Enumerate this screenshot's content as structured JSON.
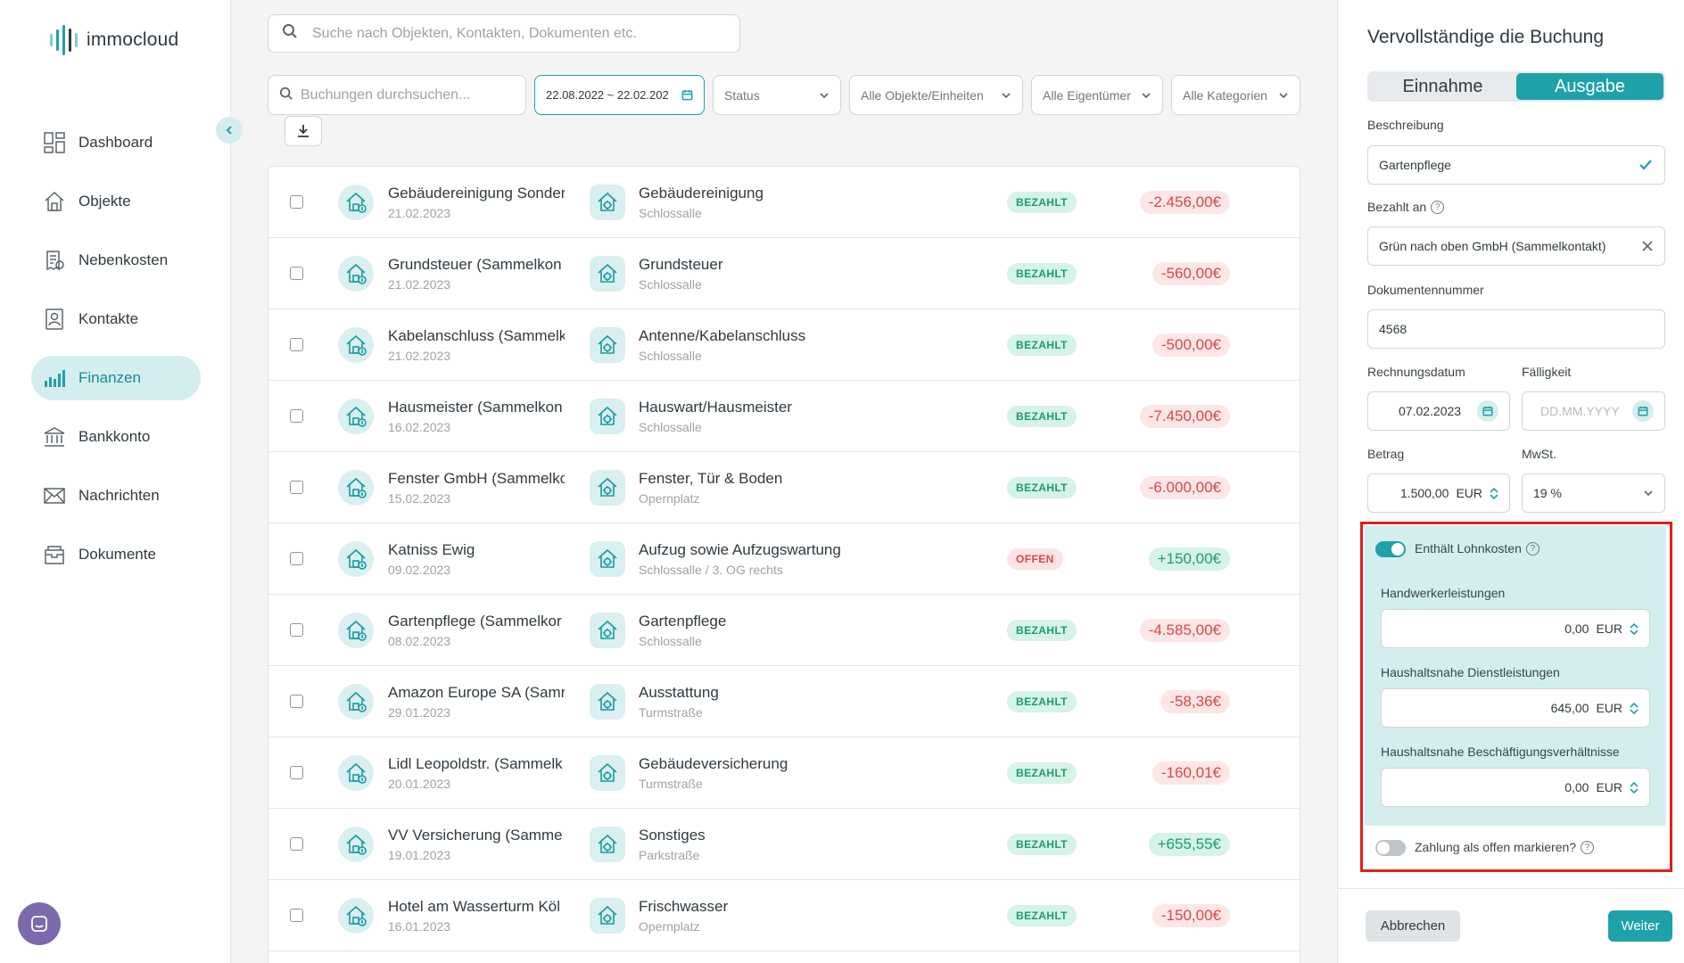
{
  "app": {
    "name": "immocloud"
  },
  "colors": {
    "accent": "#1fa1a9",
    "accent_light": "#d4eef0",
    "paid_bg": "#d5f3e6",
    "paid_text": "#1b9e6b",
    "negative_text": "#d94747",
    "negative_bg": "#fde6e6",
    "highlight": "#e0201c",
    "chat": "#7d6aad"
  },
  "sidebar": {
    "items": [
      {
        "label": "Dashboard",
        "icon": "dashboard-icon"
      },
      {
        "label": "Objekte",
        "icon": "house-icon"
      },
      {
        "label": "Nebenkosten",
        "icon": "receipt-icon"
      },
      {
        "label": "Kontakte",
        "icon": "contact-icon"
      },
      {
        "label": "Finanzen",
        "icon": "chart-icon",
        "active": true
      },
      {
        "label": "Bankkonto",
        "icon": "bank-icon"
      },
      {
        "label": "Nachrichten",
        "icon": "mail-icon"
      },
      {
        "label": "Dokumente",
        "icon": "folder-icon"
      }
    ]
  },
  "search": {
    "placeholder": "Suche nach Objekten, Kontakten, Dokumenten etc."
  },
  "filters": {
    "search_placeholder": "Buchungen durchsuchen...",
    "date_range": "22.08.2022 ~ 22.02.202",
    "status": "Status",
    "objects": "Alle Objekte/Einheiten",
    "owners": "Alle Eigentümer",
    "categories": "Alle Kategorien"
  },
  "transactions": [
    {
      "name": "Gebäudereinigung Sonder",
      "date": "21.02.2023",
      "category": "Gebäudereinigung",
      "property": "Schlossalle",
      "status": "BEZAHLT",
      "amount": "-2.456,00€",
      "sign": "neg"
    },
    {
      "name": "Grundsteuer (Sammelkon",
      "date": "21.02.2023",
      "category": "Grundsteuer",
      "property": "Schlossalle",
      "status": "BEZAHLT",
      "amount": "-560,00€",
      "sign": "neg"
    },
    {
      "name": "Kabelanschluss (Sammelk",
      "date": "21.02.2023",
      "category": "Antenne/Kabelanschluss",
      "property": "Schlossalle",
      "status": "BEZAHLT",
      "amount": "-500,00€",
      "sign": "neg"
    },
    {
      "name": "Hausmeister (Sammelkon",
      "date": "16.02.2023",
      "category": "Hauswart/Hausmeister",
      "property": "Schlossalle",
      "status": "BEZAHLT",
      "amount": "-7.450,00€",
      "sign": "neg"
    },
    {
      "name": "Fenster GmbH (Sammelkc",
      "date": "15.02.2023",
      "category": "Fenster, Tür & Boden",
      "property": "Opernplatz",
      "status": "BEZAHLT",
      "amount": "-6.000,00€",
      "sign": "neg"
    },
    {
      "name": "Katniss Ewig",
      "date": "09.02.2023",
      "category": "Aufzug sowie Aufzugswartung",
      "property": "Schlossalle / 3. OG rechts",
      "status": "OFFEN",
      "amount": "+150,00€",
      "sign": "pos"
    },
    {
      "name": "Gartenpflege (Sammelkor",
      "date": "08.02.2023",
      "category": "Gartenpflege",
      "property": "Schlossalle",
      "status": "BEZAHLT",
      "amount": "-4.585,00€",
      "sign": "neg"
    },
    {
      "name": "Amazon Europe SA (Samr",
      "date": "29.01.2023",
      "category": "Ausstattung",
      "property": "Turmstraße",
      "status": "BEZAHLT",
      "amount": "-58,36€",
      "sign": "neg"
    },
    {
      "name": "Lidl Leopoldstr. (Sammelk",
      "date": "20.01.2023",
      "category": "Gebäudeversicherung",
      "property": "Turmstraße",
      "status": "BEZAHLT",
      "amount": "-160,01€",
      "sign": "neg"
    },
    {
      "name": "VV Versicherung (Samme",
      "date": "19.01.2023",
      "category": "Sonstiges",
      "property": "Parkstraße",
      "status": "BEZAHLT",
      "amount": "+655,55€",
      "sign": "pos"
    },
    {
      "name": "Hotel am Wasserturm Köl",
      "date": "16.01.2023",
      "category": "Frischwasser",
      "property": "Opernplatz",
      "status": "BEZAHLT",
      "amount": "-150,00€",
      "sign": "neg"
    }
  ],
  "panel": {
    "title": "Vervollständige die Buchung",
    "tab_income": "Einnahme",
    "tab_expense": "Ausgabe",
    "description_label": "Beschreibung",
    "description_value": "Gartenpflege",
    "paid_to_label": "Bezahlt an",
    "paid_to_value": "Grün nach oben GmbH (Sammelkontakt)",
    "doc_number_label": "Dokumentennummer",
    "doc_number_value": "4568",
    "invoice_date_label": "Rechnungsdatum",
    "invoice_date_value": "07.02.2023",
    "due_label": "Fälligkeit",
    "due_placeholder": "DD.MM.YYYY",
    "amount_label": "Betrag",
    "amount_value": "1.500,00",
    "currency": "EUR",
    "vat_label": "MwSt.",
    "vat_value": "19 %",
    "labor_toggle_label": "Enthält Lohnkosten",
    "labor_toggle_on": true,
    "craftsman_label": "Handwerkerleistungen",
    "craftsman_value": "0,00",
    "household_services_label": "Haushaltsnahe Dienstleistungen",
    "household_services_value": "645,00",
    "household_employment_label": "Haushaltsnahe Beschäftigungsverhältnisse",
    "household_employment_value": "0,00",
    "open_toggle_label": "Zahlung als offen markieren?",
    "open_toggle_on": false,
    "cancel": "Abbrechen",
    "next": "Weiter"
  }
}
